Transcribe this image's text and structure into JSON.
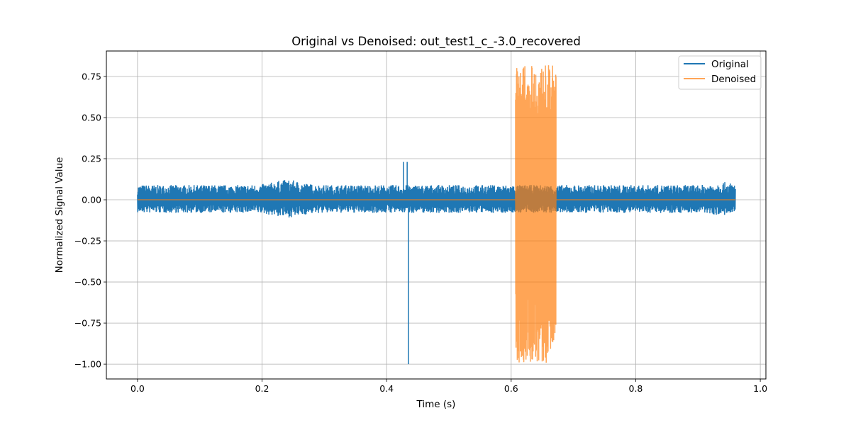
{
  "chart_data": {
    "type": "line",
    "title": "Original vs Denoised: out_test1_c_-3.0_recovered",
    "xlabel": "Time (s)",
    "ylabel": "Normalized Signal Value",
    "xlim": [
      -0.05,
      1.009
    ],
    "ylim": [
      -1.09,
      0.905
    ],
    "xticks": [
      0.0,
      0.2,
      0.4,
      0.6,
      0.8,
      1.0
    ],
    "xtick_labels": [
      "0.0",
      "0.2",
      "0.4",
      "0.6",
      "0.8",
      "1.0"
    ],
    "yticks": [
      0.75,
      0.5,
      0.25,
      0.0,
      -0.25,
      -0.5,
      -0.75,
      -1.0
    ],
    "ytick_labels": [
      "0.75",
      "0.50",
      "0.25",
      "0.00",
      "−0.25",
      "−0.50",
      "−0.75",
      "−1.00"
    ],
    "grid": true,
    "legend_position": "top-right",
    "series": [
      {
        "name": "Original",
        "color": "#1f77b4",
        "x_range": [
          0.0,
          0.96
        ],
        "typical_amplitude": [
          -0.08,
          0.09
        ],
        "events": [
          {
            "x": 0.427,
            "min": -0.05,
            "max": 0.23
          },
          {
            "x": 0.433,
            "min": -0.05,
            "max": 0.23
          },
          {
            "x": 0.435,
            "min": -1.0,
            "max": 0.05
          }
        ]
      },
      {
        "name": "Denoised",
        "color": "#ff7f0e",
        "x_range": [
          0.0,
          0.96
        ],
        "baseline": 0.0,
        "burst": {
          "x_range": [
            0.607,
            0.672
          ],
          "min": -1.0,
          "max": 0.82
        }
      }
    ]
  }
}
